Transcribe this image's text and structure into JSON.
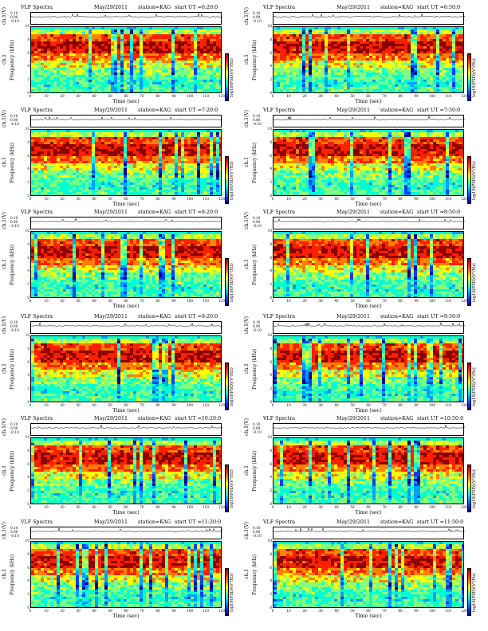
{
  "figure": {
    "chart_type_label": "VLF Spectra",
    "date": "May/29/2011",
    "station": "station=KAG",
    "ts_ylabel": "ch.1(V)",
    "ts_ticks": [
      "0.10",
      "0.00",
      "-0.10"
    ],
    "spec_ylabel_channel": "ch.1",
    "spec_ylabel": "Frequency (kHz)",
    "spec_yticks": [
      "0",
      "2",
      "4",
      "6",
      "8",
      "10"
    ],
    "xlabel": "Time (sec)",
    "xticks": [
      "0",
      "10",
      "20",
      "30",
      "40",
      "50",
      "60",
      "70",
      "80",
      "90",
      "100",
      "110",
      "120"
    ],
    "colorbar_label": "log10(PSD)(V²/Hz)"
  },
  "panels": [
    {
      "start_ut": "start UT =6:20:0"
    },
    {
      "start_ut": "start UT =6:50:0"
    },
    {
      "start_ut": "start UT =7:20:0"
    },
    {
      "start_ut": "start UT =7:50:0"
    },
    {
      "start_ut": "start UT =8:20:0"
    },
    {
      "start_ut": "start UT =8:50:0"
    },
    {
      "start_ut": "start UT =9:20:0"
    },
    {
      "start_ut": "start UT =9:50:0"
    },
    {
      "start_ut": "start UT =10:20:0"
    },
    {
      "start_ut": "start UT =10:50:0"
    },
    {
      "start_ut": "start UT =11:20:0"
    },
    {
      "start_ut": "start UT =11:50:0"
    }
  ],
  "chart_data": {
    "type": "heatmap",
    "x_unit": "sec",
    "xlim": [
      0,
      120
    ],
    "y_unit": "kHz",
    "ylim": [
      0,
      10
    ],
    "colormap": [
      "#000090",
      "#0040ff",
      "#00a0ff",
      "#00ffd0",
      "#80ff80",
      "#ffff00",
      "#ff8000",
      "#ff2000",
      "#8b0000"
    ],
    "frequency_profile_kHz": [
      {
        "freq": 0.5,
        "level": 0.45
      },
      {
        "freq": 1.5,
        "level": 0.42
      },
      {
        "freq": 2.5,
        "level": 0.45
      },
      {
        "freq": 3.5,
        "level": 0.5
      },
      {
        "freq": 4.5,
        "level": 0.6
      },
      {
        "freq": 5.5,
        "level": 0.75
      },
      {
        "freq": 6.5,
        "level": 0.88
      },
      {
        "freq": 7.5,
        "level": 0.9
      },
      {
        "freq": 8.5,
        "level": 0.8
      },
      {
        "freq": 9.5,
        "level": 0.55
      }
    ],
    "ts_ylim": [
      -0.1,
      0.1
    ]
  }
}
